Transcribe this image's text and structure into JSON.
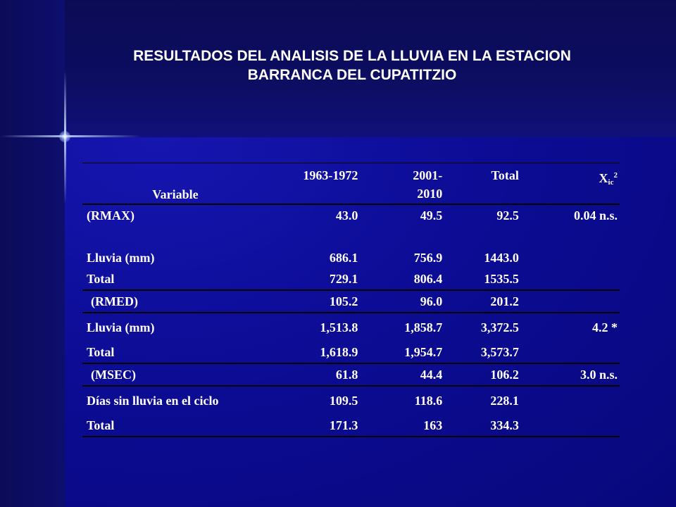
{
  "title": {
    "line1": "RESULTADOS DEL ANALISIS DE LA LLUVIA EN LA ESTACION",
    "line2": "BARRANCA DEL CUPATITZIO"
  },
  "table": {
    "headers": {
      "variable": "Variable",
      "p1": "1963-1972",
      "p2_line1": "2001-",
      "p2_line2": "2010",
      "total": "Total",
      "chi_base": "X",
      "chi_sub": "ic",
      "chi_sup": "2"
    },
    "rows": [
      {
        "label": "(RMAX)",
        "p1": "43.0",
        "p2": "49.5",
        "total": "92.5",
        "chi": "0.04 n.s."
      },
      {
        "label": "Lluvia (mm)",
        "p1": "686.1",
        "p2": "756.9",
        "total": "1443.0",
        "chi": ""
      },
      {
        "label": "Total",
        "p1": "729.1",
        "p2": "806.4",
        "total": "1535.5",
        "chi": ""
      },
      {
        "label": "(RMED)",
        "p1": "105.2",
        "p2": "96.0",
        "total": "201.2",
        "chi": ""
      },
      {
        "label": "Lluvia (mm)",
        "p1": "1,513.8",
        "p2": "1,858.7",
        "total": "3,372.5",
        "chi": "4.2 *"
      },
      {
        "label": "Total",
        "p1": "1,618.9",
        "p2": "1,954.7",
        "total": "3,573.7",
        "chi": ""
      },
      {
        "label": "(MSEC)",
        "p1": "61.8",
        "p2": "44.4",
        "total": "106.2",
        "chi": "3.0 n.s."
      },
      {
        "label": "Días sin lluvia en el ciclo",
        "p1": "109.5",
        "p2": "118.6",
        "total": "228.1",
        "chi": ""
      },
      {
        "label": "Total",
        "p1": "171.3",
        "p2": "163",
        "total": "334.3",
        "chi": ""
      }
    ]
  }
}
